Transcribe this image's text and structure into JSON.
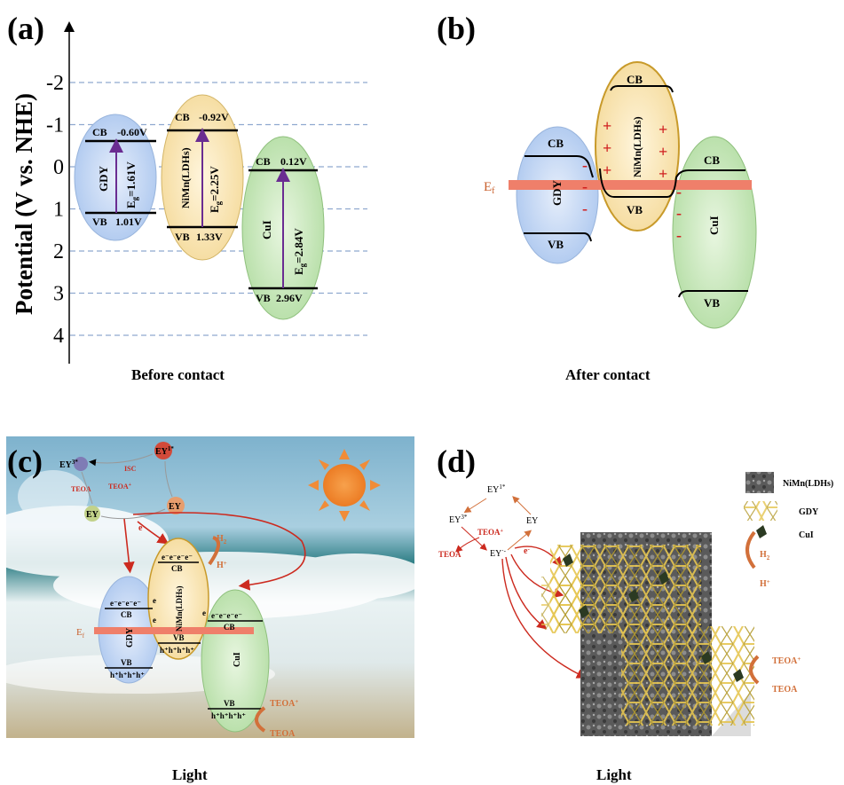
{
  "panel_a": {
    "label": "(a)",
    "axis_title": "Potential (V vs. NHE)",
    "ticks": [
      "-2",
      "-1",
      "0",
      "1",
      "2",
      "3",
      "4"
    ],
    "caption": "Before contact",
    "gdy": {
      "name": "GDY",
      "cb": "CB",
      "cb_value": "-0.60V",
      "vb": "VB",
      "vb_value": "1.01V",
      "eg": "E",
      "eg_sub": "g",
      "eg_value": "=1.61V"
    },
    "nimn": {
      "name": "NiMn(LDHs)",
      "cb": "CB",
      "cb_value": "-0.92V",
      "vb": "VB",
      "vb_value": "1.33V",
      "eg": "E",
      "eg_sub": "g",
      "eg_value": "=2.25V"
    },
    "cui": {
      "name": "CuI",
      "cb": "CB",
      "cb_value": "0.12V",
      "vb": "VB",
      "vb_value": "2.96V",
      "eg": "E",
      "eg_sub": "g",
      "eg_value": "=2.84V"
    }
  },
  "panel_b": {
    "label": "(b)",
    "caption": "After contact",
    "ef": "E",
    "ef_sub": "f",
    "gdy": {
      "name": "GDY",
      "cb": "CB",
      "vb": "VB"
    },
    "nimn": {
      "name": "NiMn(LDHs)",
      "cb": "CB",
      "vb": "VB"
    },
    "cui": {
      "name": "CuI",
      "cb": "CB",
      "vb": "VB"
    },
    "plus": "+",
    "minus": "-"
  },
  "panel_c": {
    "label": "(c)",
    "caption": "Light",
    "ey3": "EY",
    "ey3_sup": "3*",
    "ey1": "EY",
    "ey1_sup": "1*",
    "ey": "EY",
    "ey_radical": "EY",
    "isc": "ISC",
    "teoa": "TEOA",
    "teoa_plus": "TEOA",
    "h2": "H",
    "h2_sub": "2",
    "h_plus": "H",
    "electrons": "e⁻e⁻e⁻e⁻",
    "holes": "h⁺h⁺h⁺h⁺",
    "e": "e",
    "ef": "E",
    "ef_sub": "f",
    "gdy": {
      "name": "GDY",
      "cb": "CB",
      "vb": "VB"
    },
    "nimn": {
      "name": "NiMn(LDHs)",
      "cb": "CB",
      "vb": "VB"
    },
    "cui": {
      "name": "CuI",
      "cb": "CB",
      "vb": "VB"
    },
    "out_teoa_plus": "TEOA",
    "out_teoa": "TEOA"
  },
  "panel_d": {
    "label": "(d)",
    "caption": "Light",
    "ey1": "EY",
    "ey1_sup": "1*",
    "ey3": "EY",
    "ey3_sup": "3*",
    "ey": "EY",
    "ey_radical": "EY",
    "teoa_plus": "TEOA",
    "teoa": "TEOA",
    "e": "e",
    "h2": "H",
    "h2_sub": "2",
    "h_plus": "H",
    "out_teoa_plus": "TEOA",
    "out_teoa": "TEOA",
    "legend": [
      {
        "name": "NiMn(LDHs)"
      },
      {
        "name": "GDY"
      },
      {
        "name": "CuI"
      }
    ]
  },
  "colors": {
    "gdy": "#a9c8ef",
    "nimn": "#f7dda2",
    "nimn_border": "#c89a2a",
    "cui": "#b5dfa6",
    "band": "#ef7f6a",
    "arrow": "#6a2c91",
    "red": "#cc2a1f",
    "orange": "#d2703a"
  }
}
